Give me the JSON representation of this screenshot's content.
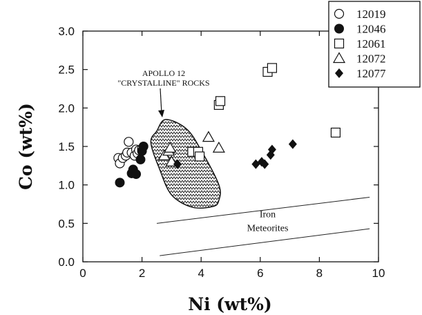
{
  "chart_data": {
    "type": "scatter",
    "xlabel": "Ni (wt%)",
    "ylabel": "Co (wt%)",
    "xlim": [
      0,
      10
    ],
    "ylim": [
      0,
      3.0
    ],
    "x_ticks": [
      "0",
      "2",
      "4",
      "6",
      "8",
      "10"
    ],
    "y_ticks": [
      "0.0",
      "0.5",
      "1.0",
      "1.5",
      "2.0",
      "2.5",
      "3.0"
    ],
    "grid": false,
    "legend_position": "top-right",
    "series": [
      {
        "name": "12019",
        "marker": "open-circle",
        "points": [
          [
            1.2,
            1.35
          ],
          [
            1.25,
            1.28
          ],
          [
            1.35,
            1.35
          ],
          [
            1.45,
            1.38
          ],
          [
            1.5,
            1.42
          ],
          [
            1.55,
            1.56
          ],
          [
            1.65,
            1.42
          ],
          [
            1.75,
            1.38
          ],
          [
            1.8,
            1.46
          ],
          [
            1.85,
            1.41
          ],
          [
            1.9,
            1.45
          ],
          [
            2.0,
            1.47
          ]
        ]
      },
      {
        "name": "12046",
        "marker": "filled-circle",
        "points": [
          [
            1.25,
            1.03
          ],
          [
            1.65,
            1.15
          ],
          [
            1.7,
            1.2
          ],
          [
            1.8,
            1.14
          ],
          [
            1.95,
            1.33
          ],
          [
            2.0,
            1.44
          ],
          [
            2.05,
            1.5
          ]
        ]
      },
      {
        "name": "12061",
        "marker": "open-square",
        "points": [
          [
            3.7,
            1.43
          ],
          [
            3.9,
            1.43
          ],
          [
            3.95,
            1.37
          ],
          [
            4.6,
            2.04
          ],
          [
            4.65,
            2.09
          ],
          [
            6.25,
            2.47
          ],
          [
            6.4,
            2.52
          ],
          [
            8.55,
            1.68
          ]
        ]
      },
      {
        "name": "12072",
        "marker": "open-triangle",
        "points": [
          [
            2.75,
            1.38
          ],
          [
            2.9,
            1.44
          ],
          [
            2.95,
            1.48
          ],
          [
            3.0,
            1.3
          ],
          [
            4.25,
            1.62
          ],
          [
            4.6,
            1.48
          ]
        ]
      },
      {
        "name": "12077",
        "marker": "filled-diamond",
        "points": [
          [
            3.2,
            1.27
          ],
          [
            5.85,
            1.27
          ],
          [
            6.05,
            1.3
          ],
          [
            6.15,
            1.27
          ],
          [
            6.35,
            1.39
          ],
          [
            6.4,
            1.46
          ],
          [
            7.1,
            1.53
          ]
        ]
      }
    ],
    "region": {
      "label_line1": "APOLLO 12",
      "label_line2": "\"CRYSTALLINE\" ROCKS",
      "outline": [
        [
          2.5,
          1.7
        ],
        [
          2.8,
          1.85
        ],
        [
          3.5,
          1.73
        ],
        [
          4.0,
          1.45
        ],
        [
          4.6,
          1.0
        ],
        [
          4.6,
          0.8
        ],
        [
          4.4,
          0.72
        ],
        [
          3.7,
          0.71
        ],
        [
          3.0,
          0.87
        ],
        [
          2.6,
          1.2
        ],
        [
          2.3,
          1.55
        ]
      ]
    },
    "lines": [
      {
        "points": [
          [
            2.5,
            0.5
          ],
          [
            9.7,
            0.84
          ]
        ]
      },
      {
        "points": [
          [
            2.6,
            0.08
          ],
          [
            9.7,
            0.43
          ]
        ]
      }
    ],
    "band_label": {
      "line1": "Iron",
      "line2": "Meteorites",
      "x": 6.25,
      "y1": 0.58,
      "y2": 0.4
    }
  }
}
